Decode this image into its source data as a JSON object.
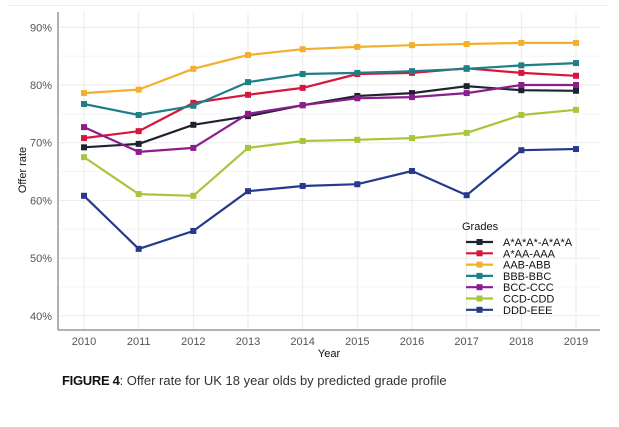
{
  "caption": {
    "figure_label": "FIGURE 4",
    "text": ": Offer rate for UK 18 year olds by predicted grade profile"
  },
  "chart_data": {
    "type": "line",
    "title": "",
    "xlabel": "Year",
    "ylabel": "Offer rate",
    "x": [
      2010,
      2011,
      2012,
      2013,
      2014,
      2015,
      2016,
      2017,
      2018,
      2019
    ],
    "x_tick_labels": [
      "2010",
      "2011",
      "2012",
      "2013",
      "2014",
      "2015",
      "2016",
      "2017",
      "2018",
      "2019"
    ],
    "y_ticks": [
      40,
      50,
      60,
      70,
      80,
      90
    ],
    "y_tick_labels": [
      "40%",
      "50%",
      "60%",
      "70%",
      "80%",
      "90%"
    ],
    "ylim": [
      37.6,
      92.5
    ],
    "grid": true,
    "legend": {
      "title": "Grades",
      "placement": "bottom-right"
    },
    "series": [
      {
        "name": "A*A*A*-A*A*A",
        "color": "#1f2330",
        "values": [
          69.2,
          69.8,
          73.1,
          74.6,
          76.5,
          78.1,
          78.6,
          79.8,
          79.1,
          79.0
        ]
      },
      {
        "name": "A*AA-AAA",
        "color": "#d6163a",
        "values": [
          70.8,
          72.0,
          76.9,
          78.3,
          79.5,
          81.9,
          82.1,
          82.9,
          82.1,
          81.6
        ]
      },
      {
        "name": "AAB-ABB",
        "color": "#f2b12c",
        "values": [
          78.6,
          79.2,
          82.8,
          85.2,
          86.2,
          86.6,
          86.9,
          87.1,
          87.3,
          87.3
        ]
      },
      {
        "name": "BBB-BBC",
        "color": "#1e7f86",
        "values": [
          76.7,
          74.8,
          76.4,
          80.5,
          81.9,
          82.1,
          82.4,
          82.8,
          83.4,
          83.8
        ]
      },
      {
        "name": "BCC-CCC",
        "color": "#8a1e8e",
        "values": [
          72.7,
          68.4,
          69.1,
          75.0,
          76.5,
          77.7,
          77.9,
          78.6,
          80.0,
          80.0
        ]
      },
      {
        "name": "CCD-CDD",
        "color": "#a8c63a",
        "values": [
          67.5,
          61.1,
          60.8,
          69.1,
          70.3,
          70.5,
          70.8,
          71.7,
          74.8,
          75.7
        ]
      },
      {
        "name": "DDD-EEE",
        "color": "#263a8c",
        "values": [
          60.8,
          51.6,
          54.7,
          61.6,
          62.5,
          62.8,
          65.1,
          60.9,
          68.7,
          68.9
        ]
      }
    ]
  }
}
